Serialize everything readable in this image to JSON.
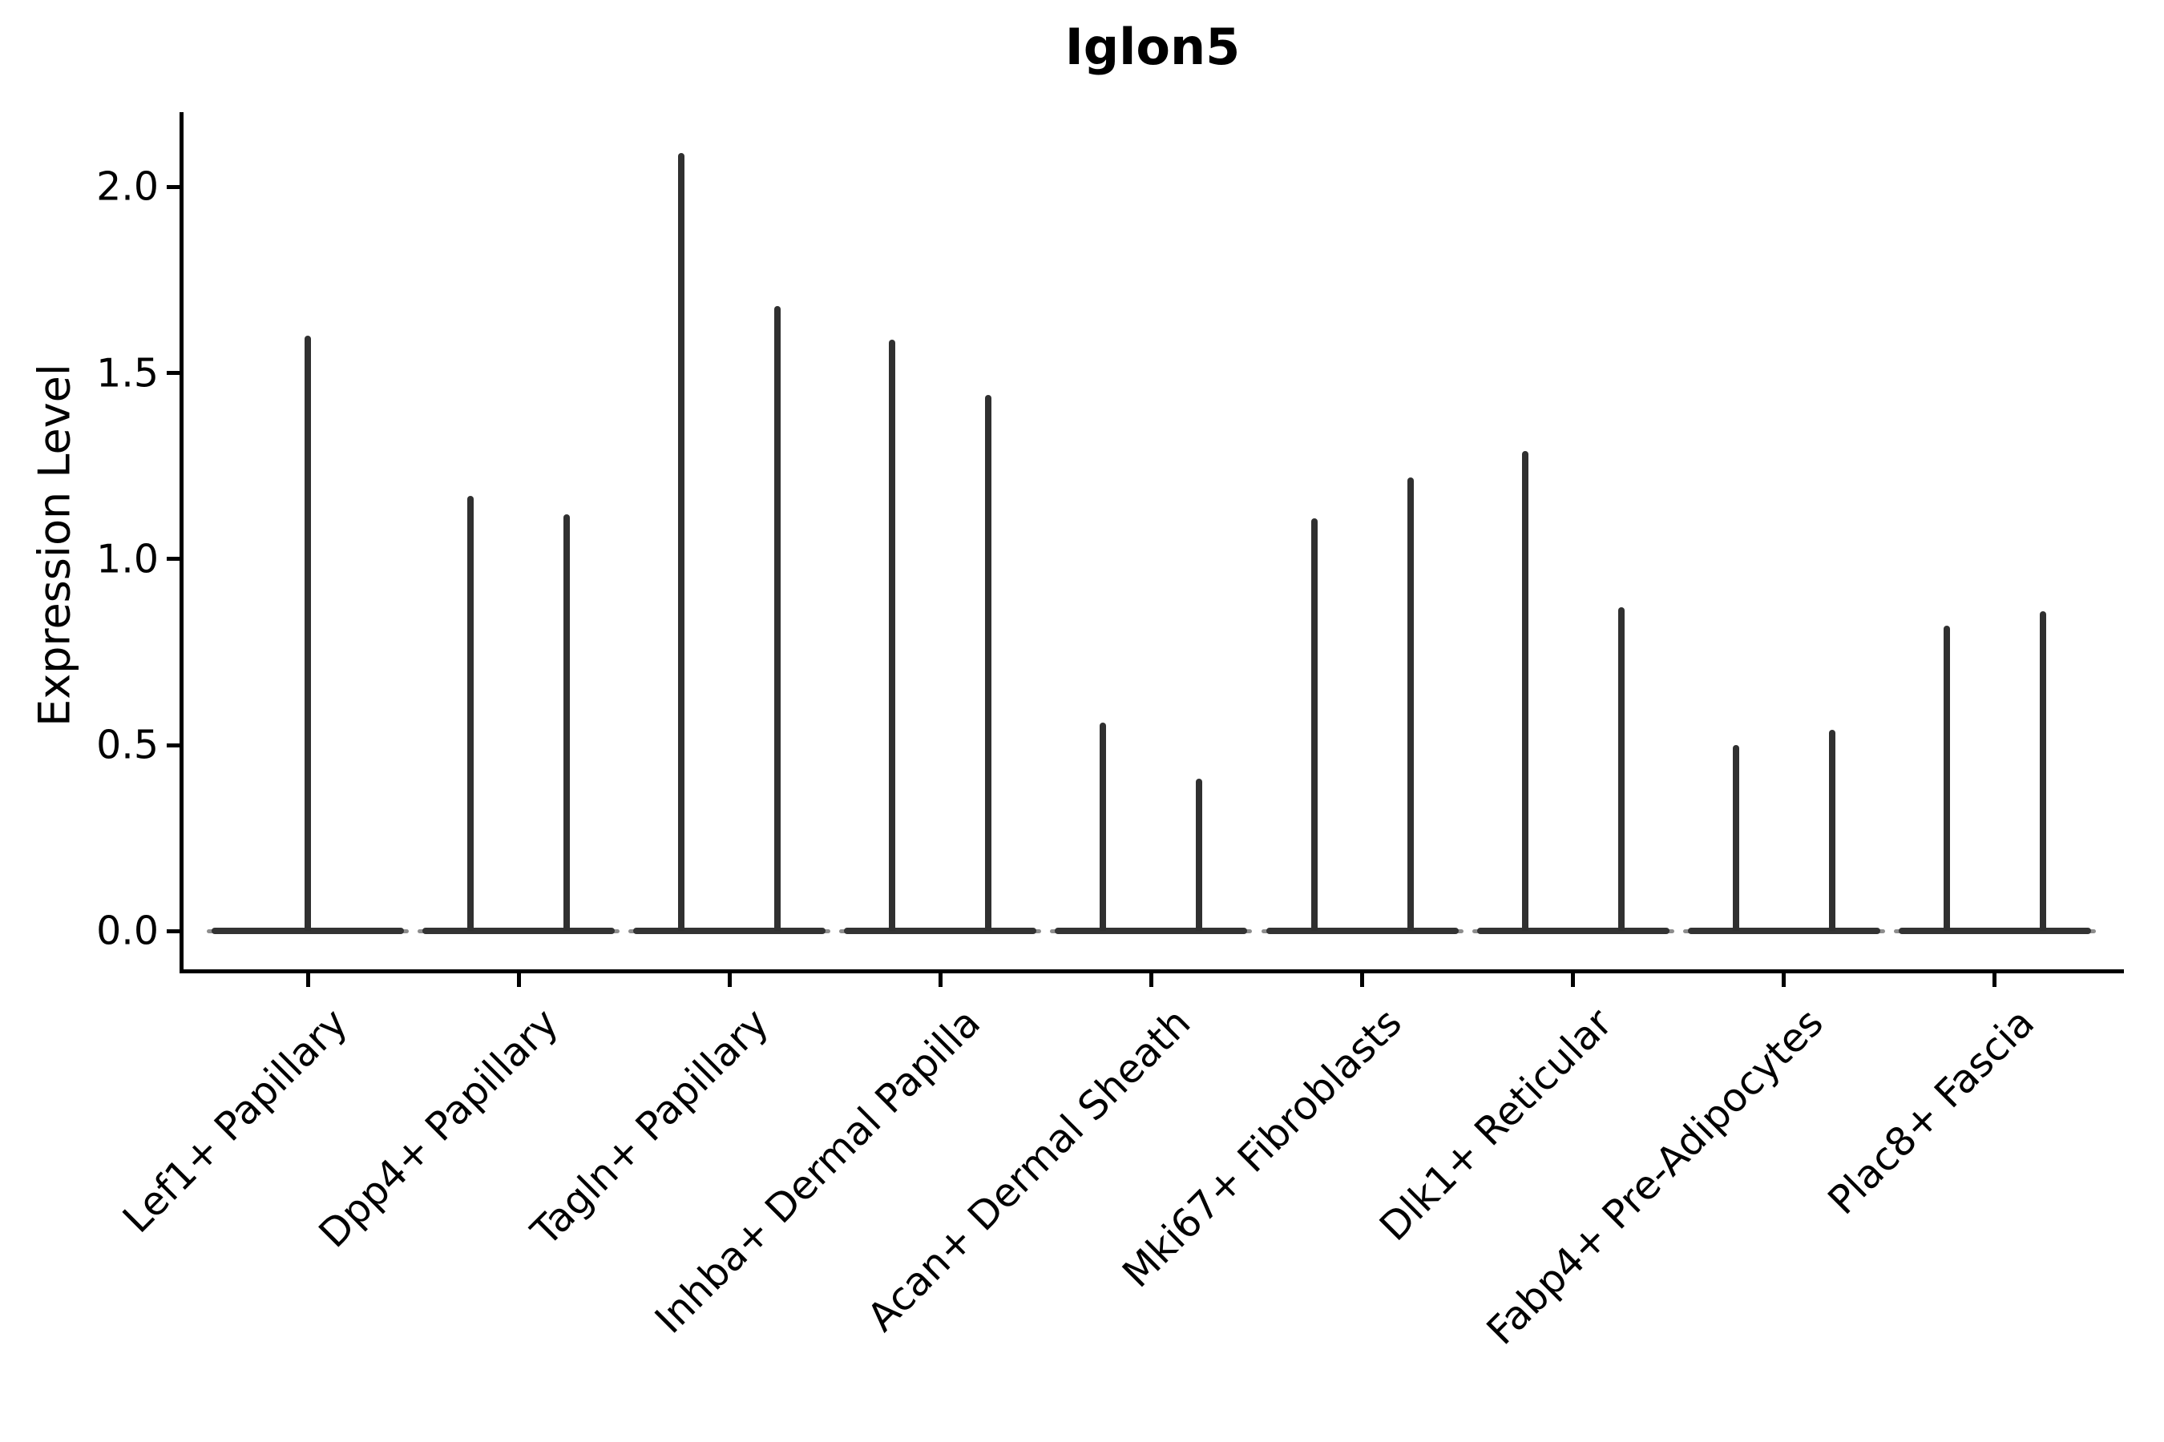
{
  "chart_data": {
    "type": "violin",
    "title": "Iglon5",
    "ylabel": "Expression Level",
    "xlabel": "",
    "ylim": [
      -0.1,
      2.2
    ],
    "yticks": [
      "0.0",
      "0.5",
      "1.0",
      "1.5",
      "2.0"
    ],
    "ytick_values": [
      0.0,
      0.5,
      1.0,
      1.5,
      2.0
    ],
    "grid": false,
    "legend": "none",
    "violin_color": "#333333",
    "style_note": "Extremely thin violins: each category shows a flat dark bar at expression 0 spanning the category width, plus one or two hair-thin vertical density tails rising to the max expression value.",
    "categories": [
      "Lef1+ Papillary",
      "Dpp4+ Papillary",
      "Tagln+ Papillary",
      "Inhba+ Dermal Papilla",
      "Acan+ Dermal Sheath",
      "Mki67+ Fibroblasts",
      "Dlk1+ Reticular",
      "Fabp4+ Pre-Adipocytes",
      "Plac8+ Fascia"
    ],
    "violins": [
      {
        "category": "Lef1+ Papillary",
        "tails": [
          {
            "pos": "center",
            "max": 1.6
          }
        ]
      },
      {
        "category": "Dpp4+ Papillary",
        "tails": [
          {
            "pos": "left",
            "max": 1.17
          },
          {
            "pos": "right",
            "max": 1.12
          }
        ]
      },
      {
        "category": "Tagln+ Papillary",
        "tails": [
          {
            "pos": "left",
            "max": 2.09
          },
          {
            "pos": "right",
            "max": 1.68
          }
        ]
      },
      {
        "category": "Inhba+ Dermal Papilla",
        "tails": [
          {
            "pos": "left",
            "max": 1.59
          },
          {
            "pos": "right",
            "max": 1.44
          }
        ]
      },
      {
        "category": "Acan+ Dermal Sheath",
        "tails": [
          {
            "pos": "left",
            "max": 0.56
          },
          {
            "pos": "right",
            "max": 0.41
          }
        ]
      },
      {
        "category": "Mki67+ Fibroblasts",
        "tails": [
          {
            "pos": "left",
            "max": 1.11
          },
          {
            "pos": "right",
            "max": 1.22
          }
        ]
      },
      {
        "category": "Dlk1+ Reticular",
        "tails": [
          {
            "pos": "left",
            "max": 1.29
          },
          {
            "pos": "right",
            "max": 0.87
          }
        ]
      },
      {
        "category": "Fabp4+ Pre-Adipocytes",
        "tails": [
          {
            "pos": "left",
            "max": 0.5
          },
          {
            "pos": "right",
            "max": 0.54
          }
        ]
      },
      {
        "category": "Plac8+ Fascia",
        "tails": [
          {
            "pos": "left",
            "max": 0.82
          },
          {
            "pos": "right",
            "max": 0.86
          }
        ]
      }
    ]
  }
}
